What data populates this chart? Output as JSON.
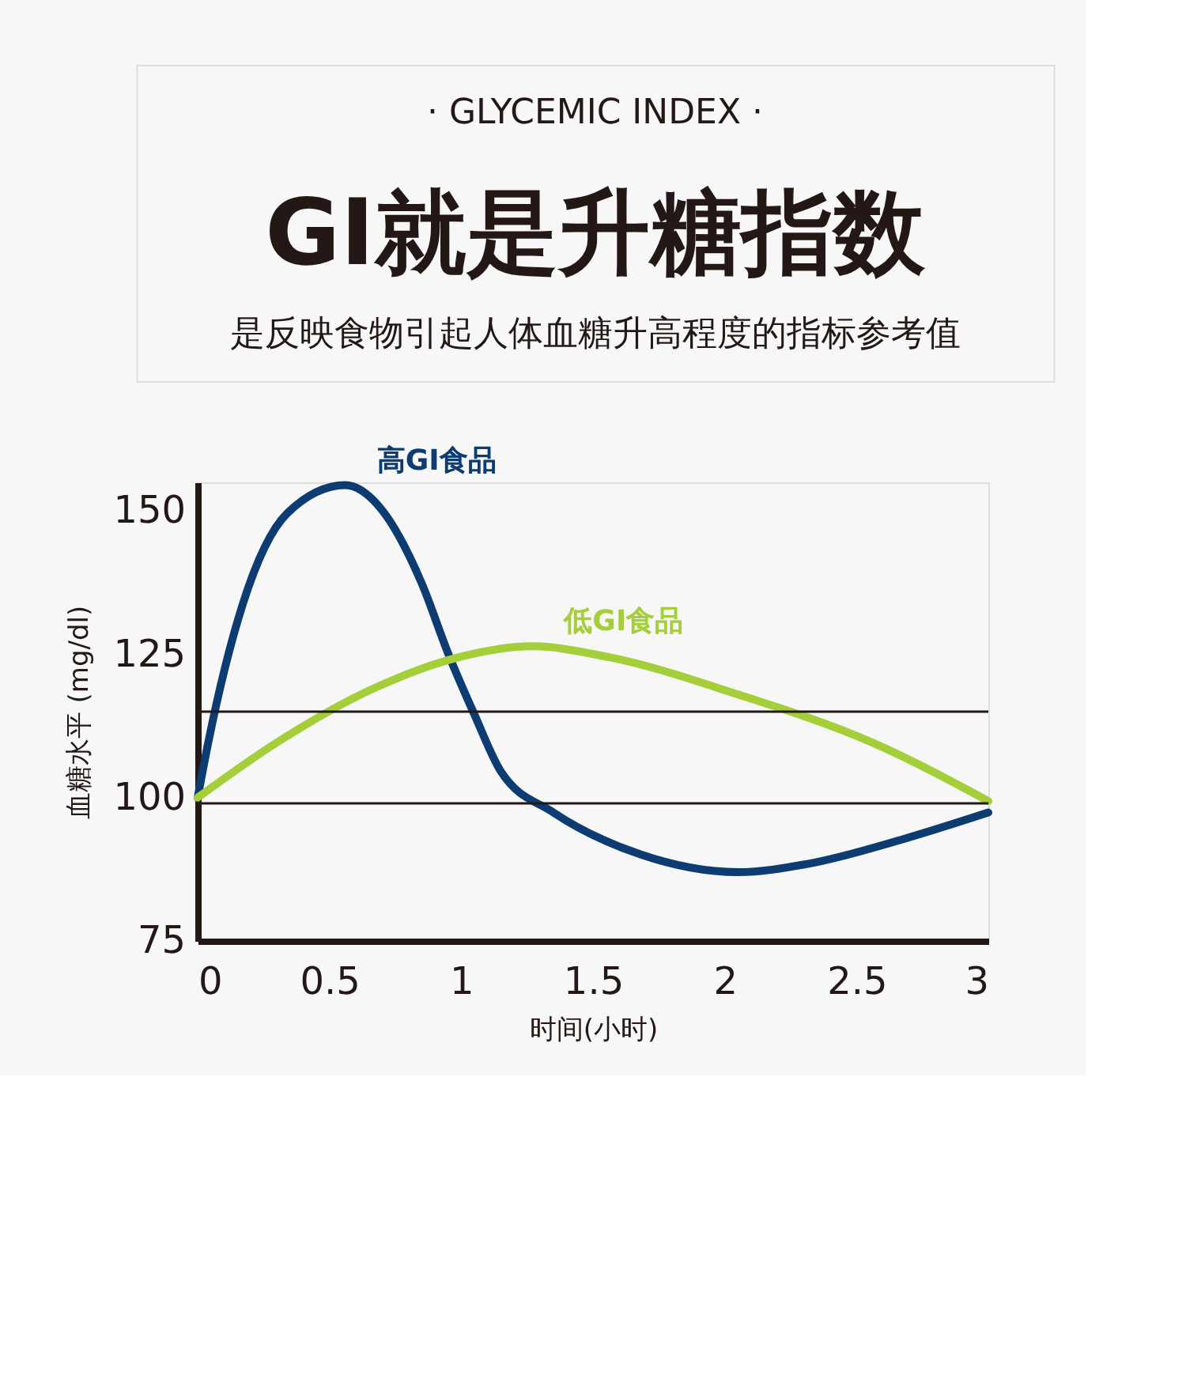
{
  "chart_data": {
    "type": "line",
    "title": "GI就是升糖指数",
    "subtitle": "是反映食物引起人体血糖升高程度的指标参考值",
    "annotations": [
      "· GLYCEMIC INDEX ·"
    ],
    "xlabel": "时间(小时)",
    "ylabel": "血糖水平 (mg/dl)",
    "xlim": [
      0,
      3
    ],
    "xticks": [
      0,
      0.5,
      1,
      1.5,
      2,
      2.5,
      3
    ],
    "ylim": [
      75,
      155
    ],
    "yticks": [
      75,
      100,
      125,
      150
    ],
    "grid": false,
    "legend": false,
    "marker": "none",
    "line_style": "solid",
    "ref_lines": [
      {
        "axis": "y",
        "value": 115,
        "color": "#231815"
      },
      {
        "axis": "y",
        "value": 99,
        "color": "#231815"
      }
    ],
    "series": [
      {
        "name": "高GI食品",
        "color": "#0d3c73",
        "x": [
          0,
          0.04,
          0.17,
          0.34,
          0.56,
          0.69,
          0.85,
          0.95,
          1.05,
          1.15,
          1.35,
          1.68,
          2.05,
          2.31,
          2.68,
          3.0
        ],
        "values": [
          100,
          109.6,
          133.6,
          149.6,
          154.5,
          150.7,
          137.4,
          125.2,
          114.5,
          104.6,
          97.4,
          90.1,
          87,
          88.4,
          92.8,
          97.4
        ]
      },
      {
        "name": "低GI食品",
        "color": "#a4cf3a",
        "x": [
          0,
          0.3,
          0.67,
          1.0,
          1.27,
          1.55,
          2.05,
          2.56,
          3.0
        ],
        "values": [
          100,
          109.6,
          119.1,
          124.6,
          126.4,
          124.6,
          118,
          109.6,
          99.4
        ]
      }
    ]
  }
}
